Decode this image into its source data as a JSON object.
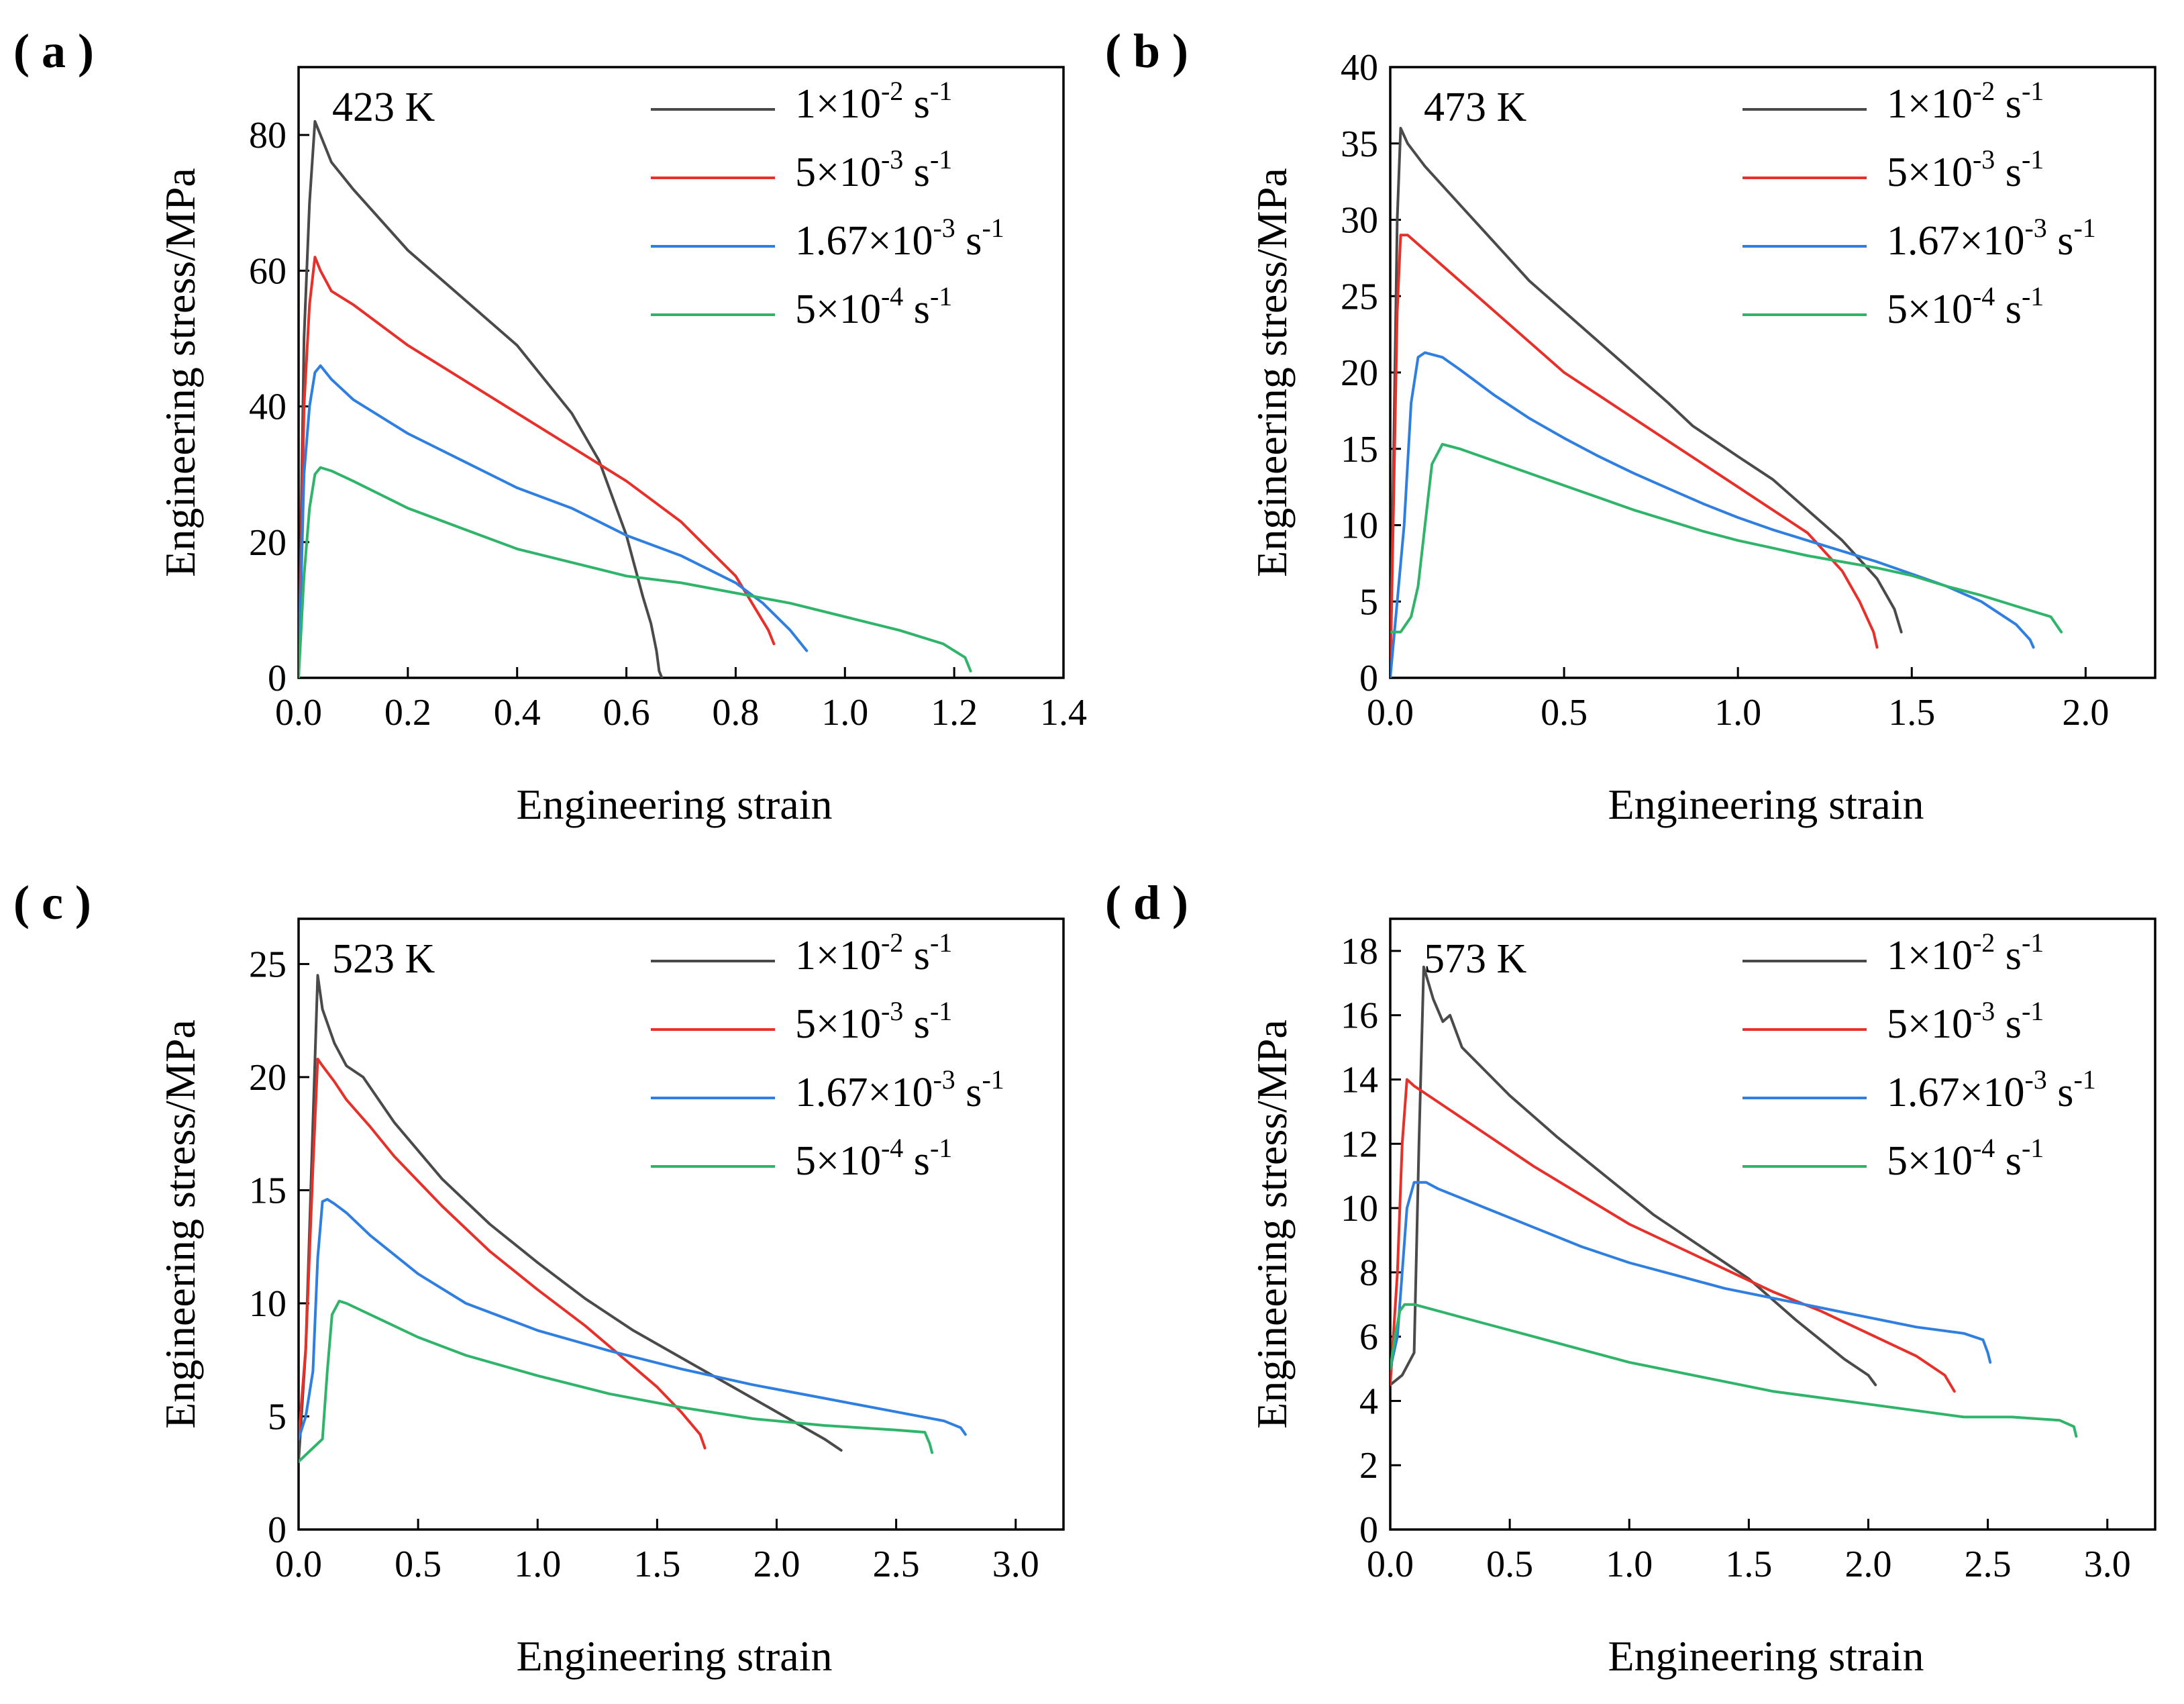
{
  "colors": {
    "s1": "#4a4a4a",
    "s2": "#e8302a",
    "s3": "#2f7fe0",
    "s4": "#2fb46a"
  },
  "chart_data": [
    {
      "id": "a",
      "panel_label": "( a )",
      "type": "line",
      "temperature": "423 K",
      "xlabel": "Engineering strain",
      "ylabel": "Engineering stress/MPa",
      "xlim": [
        0,
        1.4
      ],
      "ylim": [
        0,
        90
      ],
      "xticks": [
        "0.0",
        "0.2",
        "0.4",
        "0.6",
        "0.8",
        "1.0",
        "1.2",
        "1.4"
      ],
      "xtick_values": [
        0,
        0.2,
        0.4,
        0.6,
        0.8,
        1.0,
        1.2,
        1.4
      ],
      "yticks": [
        "0",
        "20",
        "40",
        "60",
        "80"
      ],
      "ytick_values": [
        0,
        20,
        40,
        60,
        80
      ],
      "series": [
        {
          "name": "1×10-2 s-1",
          "base": "1×10",
          "exp": "-2",
          "unit": " s",
          "unit_exp": "-1",
          "color_key": "s1",
          "x": [
            0,
            0.005,
            0.01,
            0.02,
            0.03,
            0.04,
            0.06,
            0.1,
            0.2,
            0.3,
            0.4,
            0.5,
            0.55,
            0.6,
            0.63,
            0.645,
            0.655,
            0.66,
            0.665
          ],
          "y": [
            0,
            25,
            50,
            70,
            82,
            80,
            76,
            72,
            63,
            56,
            49,
            39,
            32,
            21,
            12,
            8,
            4,
            1,
            0
          ]
        },
        {
          "name": "5×10-3 s-1",
          "base": "5×10",
          "exp": "-3",
          "unit": " s",
          "unit_exp": "-1",
          "color_key": "s2",
          "x": [
            0,
            0.005,
            0.01,
            0.02,
            0.03,
            0.04,
            0.06,
            0.1,
            0.2,
            0.3,
            0.4,
            0.5,
            0.6,
            0.7,
            0.75,
            0.8,
            0.83,
            0.86,
            0.87
          ],
          "y": [
            0,
            20,
            40,
            55,
            62,
            60,
            57,
            55,
            49,
            44,
            39,
            34,
            29,
            23,
            19,
            15,
            11,
            7,
            5
          ]
        },
        {
          "name": "1.67×10-3 s-1",
          "base": "1.67×10",
          "exp": "-3",
          "unit": " s",
          "unit_exp": "-1",
          "color_key": "s3",
          "x": [
            0,
            0.005,
            0.01,
            0.02,
            0.03,
            0.04,
            0.06,
            0.1,
            0.2,
            0.3,
            0.4,
            0.5,
            0.6,
            0.7,
            0.8,
            0.85,
            0.9,
            0.93
          ],
          "y": [
            0,
            15,
            30,
            40,
            45,
            46,
            44,
            41,
            36,
            32,
            28,
            25,
            21,
            18,
            14,
            11,
            7,
            4
          ]
        },
        {
          "name": "5×10-4 s-1",
          "base": "5×10",
          "exp": "-4",
          "unit": " s",
          "unit_exp": "-1",
          "color_key": "s4",
          "x": [
            0,
            0.01,
            0.02,
            0.03,
            0.04,
            0.06,
            0.1,
            0.2,
            0.3,
            0.4,
            0.5,
            0.6,
            0.7,
            0.8,
            0.9,
            1.0,
            1.1,
            1.18,
            1.22,
            1.23
          ],
          "y": [
            0,
            15,
            25,
            30,
            31,
            30.5,
            29,
            25,
            22,
            19,
            17,
            15,
            14,
            12.5,
            11,
            9,
            7,
            5,
            3,
            1
          ]
        }
      ]
    },
    {
      "id": "b",
      "panel_label": "( b )",
      "type": "line",
      "temperature": "473 K",
      "xlabel": "Engineering strain",
      "ylabel": "Engineering stress/MPa",
      "xlim": [
        0,
        2.2
      ],
      "ylim": [
        0,
        40
      ],
      "xticks": [
        "0.0",
        "0.5",
        "1.0",
        "1.5",
        "2.0"
      ],
      "xtick_values": [
        0,
        0.5,
        1.0,
        1.5,
        2.0
      ],
      "yticks": [
        "0",
        "5",
        "10",
        "15",
        "20",
        "25",
        "30",
        "35",
        "40"
      ],
      "ytick_values": [
        0,
        5,
        10,
        15,
        20,
        25,
        30,
        35,
        40
      ],
      "series": [
        {
          "name": "1×10-2 s-1",
          "base": "1×10",
          "exp": "-2",
          "unit": " s",
          "unit_exp": "-1",
          "color_key": "s1",
          "x": [
            0,
            0.01,
            0.02,
            0.03,
            0.05,
            0.1,
            0.2,
            0.3,
            0.4,
            0.5,
            0.6,
            0.7,
            0.8,
            0.87,
            1.0,
            1.1,
            1.2,
            1.3,
            1.4,
            1.45,
            1.47
          ],
          "y": [
            0,
            15,
            30,
            36,
            35,
            33.5,
            31,
            28.5,
            26,
            24,
            22,
            20,
            18,
            16.5,
            14.5,
            13,
            11,
            9,
            6.5,
            4.5,
            3
          ]
        },
        {
          "name": "5×10-3 s-1",
          "base": "5×10",
          "exp": "-3",
          "unit": " s",
          "unit_exp": "-1",
          "color_key": "s2",
          "x": [
            0,
            0.01,
            0.02,
            0.03,
            0.05,
            0.1,
            0.2,
            0.3,
            0.4,
            0.5,
            0.6,
            0.7,
            0.8,
            0.9,
            1.0,
            1.1,
            1.2,
            1.3,
            1.35,
            1.39,
            1.4
          ],
          "y": [
            0,
            12,
            24,
            29,
            29,
            28,
            26,
            24,
            22,
            20,
            18.5,
            17,
            15.5,
            14,
            12.5,
            11,
            9.5,
            7,
            5,
            3,
            2
          ]
        },
        {
          "name": "1.67×10-3 s-1",
          "base": "1.67×10",
          "exp": "-3",
          "unit": " s",
          "unit_exp": "-1",
          "color_key": "s3",
          "x": [
            0,
            0.02,
            0.04,
            0.06,
            0.08,
            0.1,
            0.15,
            0.2,
            0.3,
            0.4,
            0.5,
            0.6,
            0.7,
            0.8,
            0.9,
            1.0,
            1.1,
            1.2,
            1.3,
            1.4,
            1.5,
            1.6,
            1.7,
            1.8,
            1.84,
            1.85
          ],
          "y": [
            0,
            5,
            10,
            18,
            21,
            21.3,
            21,
            20.2,
            18.5,
            17,
            15.7,
            14.5,
            13.4,
            12.4,
            11.4,
            10.5,
            9.7,
            9,
            8.3,
            7.6,
            6.8,
            6,
            5,
            3.5,
            2.5,
            2
          ]
        },
        {
          "name": "5×10-4 s-1",
          "base": "5×10",
          "exp": "-4",
          "unit": " s",
          "unit_exp": "-1",
          "color_key": "s4",
          "x": [
            0,
            0.03,
            0.06,
            0.08,
            0.1,
            0.12,
            0.15,
            0.2,
            0.3,
            0.4,
            0.5,
            0.6,
            0.7,
            0.8,
            0.9,
            1.0,
            1.1,
            1.2,
            1.3,
            1.4,
            1.5,
            1.6,
            1.7,
            1.8,
            1.9,
            1.93
          ],
          "y": [
            3,
            3,
            4,
            6,
            10,
            14,
            15.3,
            15,
            14.2,
            13.4,
            12.6,
            11.8,
            11,
            10.3,
            9.6,
            9,
            8.5,
            8,
            7.6,
            7.2,
            6.7,
            6,
            5.4,
            4.7,
            4,
            3
          ]
        }
      ]
    },
    {
      "id": "c",
      "panel_label": "( c )",
      "type": "line",
      "temperature": "523 K",
      "xlabel": "Engineering strain",
      "ylabel": "Engineering stress/MPa",
      "xlim": [
        0,
        3.2
      ],
      "ylim": [
        0,
        27
      ],
      "xticks": [
        "0.0",
        "0.5",
        "1.0",
        "1.5",
        "2.0",
        "2.5",
        "3.0"
      ],
      "xtick_values": [
        0,
        0.5,
        1.0,
        1.5,
        2.0,
        2.5,
        3.0
      ],
      "yticks": [
        "0",
        "5",
        "10",
        "15",
        "20",
        "25"
      ],
      "ytick_values": [
        0,
        5,
        10,
        15,
        20,
        25
      ],
      "series": [
        {
          "name": "1×10-2 s-1",
          "base": "1×10",
          "exp": "-2",
          "unit": " s",
          "unit_exp": "-1",
          "color_key": "s1",
          "x": [
            0,
            0.03,
            0.06,
            0.08,
            0.1,
            0.15,
            0.2,
            0.27,
            0.4,
            0.6,
            0.8,
            1.0,
            1.2,
            1.4,
            1.6,
            1.8,
            2.0,
            2.2,
            2.27
          ],
          "y": [
            3,
            8,
            18,
            24.5,
            23,
            21.5,
            20.5,
            20,
            18,
            15.5,
            13.5,
            11.8,
            10.2,
            8.8,
            7.6,
            6.4,
            5.2,
            4,
            3.5
          ]
        },
        {
          "name": "5×10-3 s-1",
          "base": "5×10",
          "exp": "-3",
          "unit": " s",
          "unit_exp": "-1",
          "color_key": "s2",
          "x": [
            0,
            0.03,
            0.06,
            0.08,
            0.1,
            0.15,
            0.2,
            0.3,
            0.4,
            0.6,
            0.8,
            1.0,
            1.2,
            1.4,
            1.5,
            1.6,
            1.68,
            1.7
          ],
          "y": [
            4,
            8,
            16,
            20.8,
            20.5,
            19.8,
            19,
            17.8,
            16.5,
            14.3,
            12.3,
            10.6,
            9,
            7.2,
            6.3,
            5.2,
            4.2,
            3.6
          ]
        },
        {
          "name": "1.67×10-3 s-1",
          "base": "1.67×10",
          "exp": "-3",
          "unit": " s",
          "unit_exp": "-1",
          "color_key": "s3",
          "x": [
            0,
            0.03,
            0.06,
            0.08,
            0.1,
            0.12,
            0.15,
            0.2,
            0.3,
            0.5,
            0.7,
            1.0,
            1.3,
            1.6,
            1.9,
            2.2,
            2.5,
            2.7,
            2.77,
            2.79
          ],
          "y": [
            4,
            5,
            7,
            12,
            14.5,
            14.6,
            14.4,
            14,
            13,
            11.3,
            10,
            8.8,
            7.9,
            7.1,
            6.4,
            5.8,
            5.2,
            4.8,
            4.5,
            4.2
          ]
        },
        {
          "name": "5×10-4 s-1",
          "base": "5×10",
          "exp": "-4",
          "unit": " s",
          "unit_exp": "-1",
          "color_key": "s4",
          "x": [
            0,
            0.05,
            0.1,
            0.12,
            0.14,
            0.17,
            0.2,
            0.3,
            0.5,
            0.7,
            1.0,
            1.3,
            1.6,
            1.9,
            2.2,
            2.5,
            2.62,
            2.64,
            2.65
          ],
          "y": [
            3,
            3.5,
            4,
            7,
            9.5,
            10.1,
            10,
            9.5,
            8.5,
            7.7,
            6.8,
            6,
            5.4,
            4.9,
            4.6,
            4.4,
            4.3,
            3.8,
            3.4
          ]
        }
      ]
    },
    {
      "id": "d",
      "panel_label": "( d )",
      "type": "line",
      "temperature": "573 K",
      "xlabel": "Engineering strain",
      "ylabel": "Engineering stress/MPa",
      "xlim": [
        0,
        3.2
      ],
      "ylim": [
        0,
        19
      ],
      "xticks": [
        "0.0",
        "0.5",
        "1.0",
        "1.5",
        "2.0",
        "2.5",
        "3.0"
      ],
      "xtick_values": [
        0,
        0.5,
        1.0,
        1.5,
        2.0,
        2.5,
        3.0
      ],
      "yticks": [
        "0",
        "2",
        "4",
        "6",
        "8",
        "10",
        "12",
        "14",
        "16",
        "18"
      ],
      "ytick_values": [
        0,
        2,
        4,
        6,
        8,
        10,
        12,
        14,
        16,
        18
      ],
      "series": [
        {
          "name": "1×10-2 s-1",
          "base": "1×10",
          "exp": "-2",
          "unit": " s",
          "unit_exp": "-1",
          "color_key": "s1",
          "x": [
            0,
            0.05,
            0.1,
            0.12,
            0.14,
            0.18,
            0.22,
            0.25,
            0.3,
            0.5,
            0.7,
            0.9,
            1.1,
            1.3,
            1.5,
            1.7,
            1.9,
            2.0,
            2.03
          ],
          "y": [
            4.5,
            4.8,
            5.5,
            12,
            17.5,
            16.5,
            15.8,
            16,
            15,
            13.5,
            12.2,
            11,
            9.8,
            8.8,
            7.8,
            6.5,
            5.3,
            4.8,
            4.5
          ]
        },
        {
          "name": "5×10-3 s-1",
          "base": "5×10",
          "exp": "-3",
          "unit": " s",
          "unit_exp": "-1",
          "color_key": "s2",
          "x": [
            0,
            0.03,
            0.05,
            0.07,
            0.1,
            0.2,
            0.4,
            0.6,
            0.8,
            1.0,
            1.2,
            1.4,
            1.6,
            1.8,
            2.0,
            2.2,
            2.32,
            2.36
          ],
          "y": [
            4.5,
            8,
            12,
            14,
            13.8,
            13.3,
            12.3,
            11.3,
            10.4,
            9.5,
            8.8,
            8.1,
            7.4,
            6.8,
            6.1,
            5.4,
            4.8,
            4.3
          ]
        },
        {
          "name": "1.67×10-3 s-1",
          "base": "1.67×10",
          "exp": "-3",
          "unit": " s",
          "unit_exp": "-1",
          "color_key": "s3",
          "x": [
            0,
            0.03,
            0.05,
            0.07,
            0.1,
            0.15,
            0.2,
            0.4,
            0.6,
            0.8,
            1.0,
            1.2,
            1.4,
            1.6,
            1.8,
            2.0,
            2.2,
            2.4,
            2.48,
            2.5,
            2.51
          ],
          "y": [
            5,
            6,
            8,
            10,
            10.8,
            10.8,
            10.6,
            10,
            9.4,
            8.8,
            8.3,
            7.9,
            7.5,
            7.2,
            6.9,
            6.6,
            6.3,
            6.1,
            5.9,
            5.5,
            5.2
          ]
        },
        {
          "name": "5×10-4 s-1",
          "base": "5×10",
          "exp": "-4",
          "unit": " s",
          "unit_exp": "-1",
          "color_key": "s4",
          "x": [
            0,
            0.02,
            0.04,
            0.06,
            0.1,
            0.2,
            0.4,
            0.6,
            0.8,
            1.0,
            1.2,
            1.4,
            1.6,
            1.8,
            2.0,
            2.2,
            2.4,
            2.6,
            2.8,
            2.86,
            2.87
          ],
          "y": [
            5,
            6,
            6.8,
            7,
            7,
            6.8,
            6.4,
            6,
            5.6,
            5.2,
            4.9,
            4.6,
            4.3,
            4.1,
            3.9,
            3.7,
            3.5,
            3.5,
            3.4,
            3.2,
            2.9
          ]
        }
      ]
    }
  ]
}
